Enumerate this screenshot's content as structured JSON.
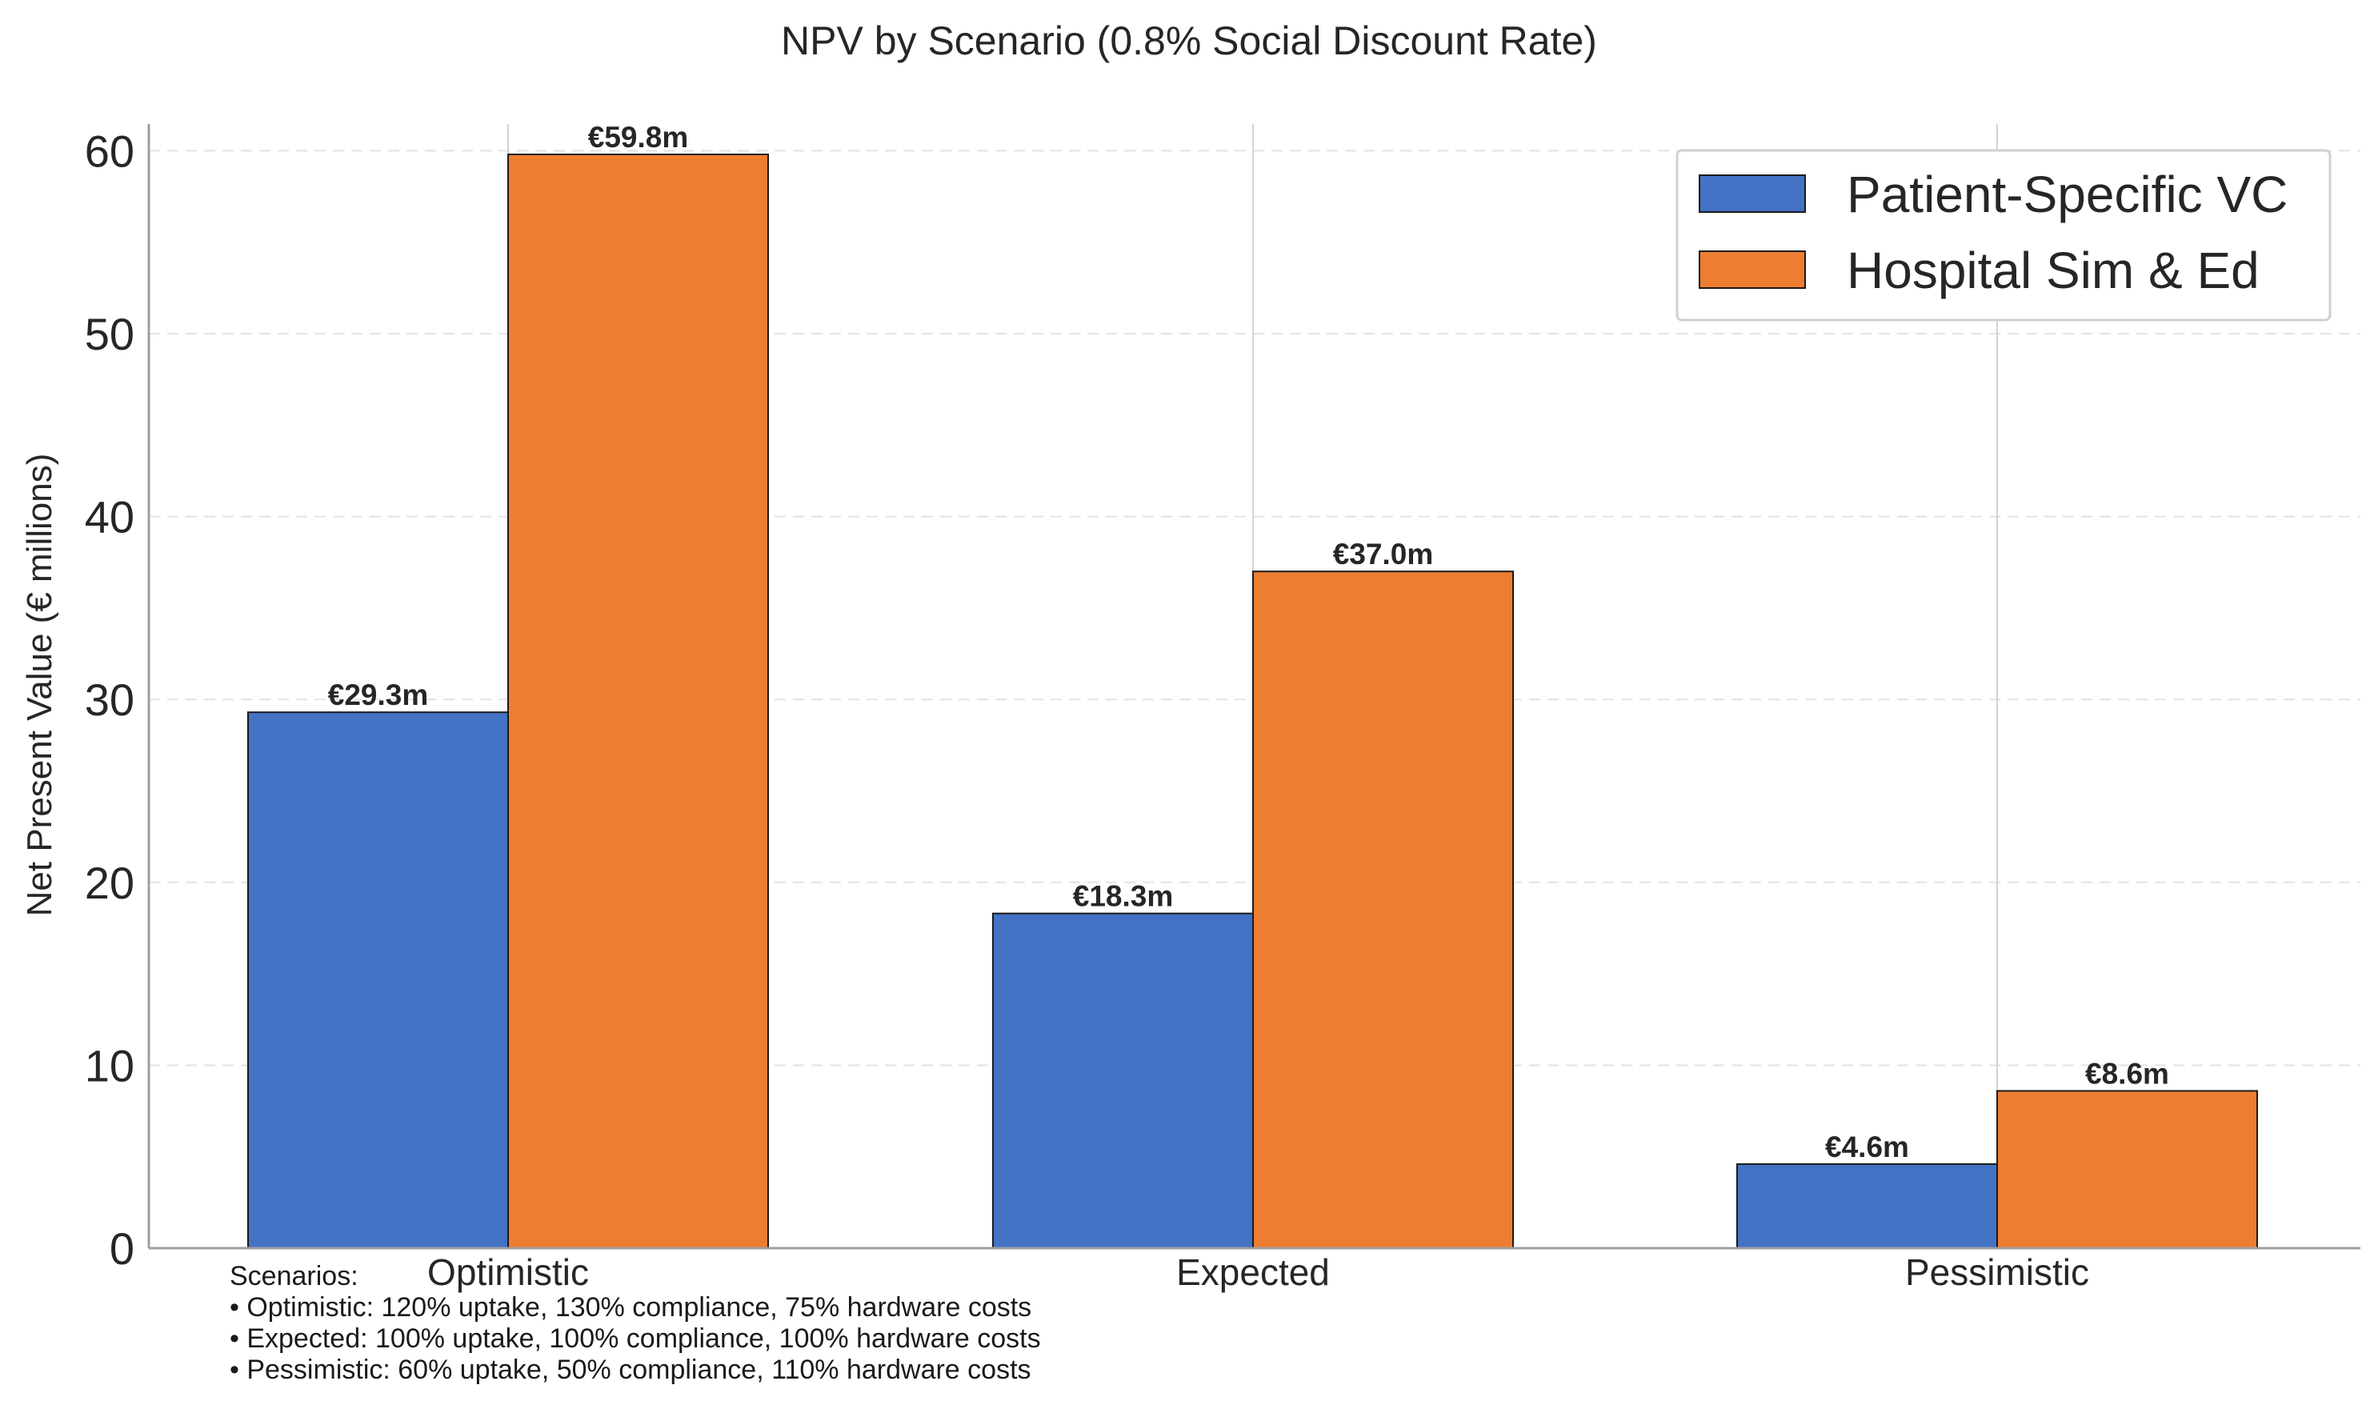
{
  "chart_data": {
    "type": "bar",
    "title": "NPV by Scenario (0.8% Social Discount Rate)",
    "xlabel": "",
    "ylabel": "Net Present Value (€ millions)",
    "categories": [
      "Optimistic",
      "Expected",
      "Pessimistic"
    ],
    "series": [
      {
        "name": "Patient-Specific VC",
        "color": "#4472c4",
        "values": [
          29.3,
          18.3,
          4.6
        ],
        "labels": [
          "€29.3m",
          "€18.3m",
          "€4.6m"
        ]
      },
      {
        "name": "Hospital Sim & Ed",
        "color": "#ed7d31",
        "values": [
          59.8,
          37.0,
          8.6
        ],
        "labels": [
          "€59.8m",
          "€37.0m",
          "€8.6m"
        ]
      }
    ],
    "ylim": [
      0,
      61
    ],
    "yticks": [
      0,
      10,
      20,
      30,
      40,
      50,
      60
    ],
    "grid": true,
    "legend_position": "top-right",
    "annotation": {
      "heading": "Scenarios:",
      "lines": [
        "• Optimistic: 120% uptake, 130% compliance, 75% hardware costs",
        "• Expected: 100% uptake, 100% compliance, 100% hardware costs",
        "• Pessimistic: 60% uptake, 50% compliance, 110% hardware costs"
      ]
    }
  }
}
